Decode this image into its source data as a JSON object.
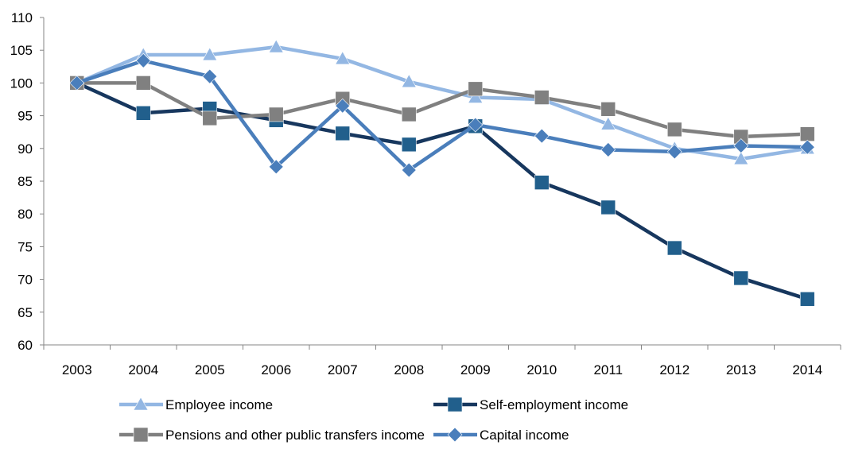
{
  "chart_data": {
    "type": "line",
    "title": "",
    "xlabel": "",
    "ylabel": "",
    "categories": [
      "2003",
      "2004",
      "2005",
      "2006",
      "2007",
      "2008",
      "2009",
      "2010",
      "2011",
      "2012",
      "2013",
      "2014"
    ],
    "ylim": [
      60,
      110
    ],
    "yticks": [
      60,
      65,
      70,
      75,
      80,
      85,
      90,
      95,
      100,
      105,
      110
    ],
    "grid": false,
    "legend_position": "bottom",
    "series": [
      {
        "name": "Employee income",
        "marker": "triangle",
        "color": "#93b7e3",
        "values": [
          100,
          104.3,
          104.3,
          105.5,
          103.7,
          100.2,
          97.8,
          97.5,
          93.7,
          90.0,
          88.4,
          90.0
        ]
      },
      {
        "name": "Self-employment income",
        "marker": "square",
        "color": "#17375e",
        "marker_color": "#215f8c",
        "values": [
          100,
          95.4,
          96.1,
          94.3,
          92.3,
          90.6,
          93.4,
          84.8,
          81.0,
          74.8,
          70.2,
          67.0
        ]
      },
      {
        "name": "Pensions and other public transfers income",
        "marker": "square",
        "color": "#808080",
        "values": [
          100,
          100,
          94.6,
          95.2,
          97.6,
          95.2,
          99.1,
          97.8,
          96.0,
          92.9,
          91.8,
          92.2
        ]
      },
      {
        "name": "Capital income",
        "marker": "diamond",
        "color": "#4a7ebb",
        "values": [
          100,
          103.4,
          101.0,
          87.2,
          96.5,
          86.7,
          93.6,
          91.9,
          89.8,
          89.5,
          90.4,
          90.2
        ]
      }
    ]
  }
}
